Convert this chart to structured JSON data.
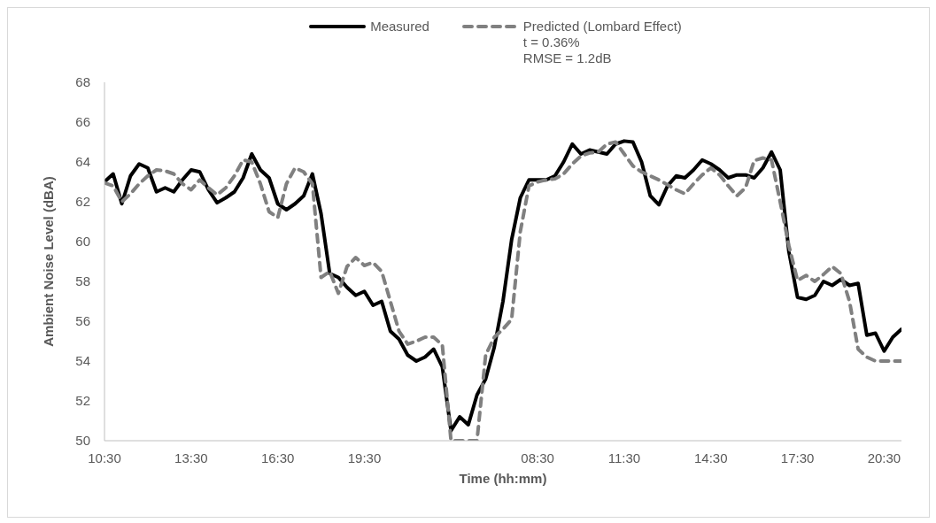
{
  "chart_data": {
    "type": "line",
    "xlabel": "Time (hh:mm)",
    "ylabel": "Ambient Noise Level (dBA)",
    "categories": [
      "10:30",
      null,
      null,
      null,
      null,
      null,
      null,
      null,
      null,
      null,
      "13:30",
      null,
      null,
      null,
      null,
      null,
      null,
      null,
      null,
      null,
      "16:30",
      null,
      null,
      null,
      null,
      null,
      null,
      null,
      null,
      null,
      "19:30",
      null,
      null,
      null,
      null,
      null,
      null,
      null,
      null,
      null,
      null,
      null,
      null,
      null,
      null,
      null,
      null,
      null,
      null,
      null,
      "08:30",
      null,
      null,
      null,
      null,
      null,
      null,
      null,
      null,
      null,
      "11:30",
      null,
      null,
      null,
      null,
      null,
      null,
      null,
      null,
      null,
      "14:30",
      null,
      null,
      null,
      null,
      null,
      null,
      null,
      null,
      null,
      "17:30",
      null,
      null,
      null,
      null,
      null,
      null,
      null,
      null,
      null,
      "20:30",
      null,
      null
    ],
    "series": [
      {
        "name": "Measured",
        "color": "#000000",
        "line_style": "solid",
        "values": [
          63.0,
          63.4,
          61.9,
          63.3,
          63.9,
          63.7,
          62.5,
          62.7,
          62.5,
          63.1,
          63.6,
          63.5,
          62.6,
          61.95,
          62.2,
          62.5,
          63.2,
          64.4,
          63.6,
          63.2,
          61.9,
          61.6,
          61.9,
          62.3,
          63.4,
          61.4,
          58.4,
          58.2,
          57.7,
          57.3,
          57.5,
          56.8,
          57.0,
          55.5,
          55.1,
          54.3,
          54.0,
          54.2,
          54.6,
          53.7,
          50.5,
          51.2,
          50.8,
          52.3,
          53.1,
          54.7,
          57.0,
          60.1,
          62.2,
          63.1,
          63.1,
          63.1,
          63.3,
          64.0,
          64.9,
          64.4,
          64.6,
          64.5,
          64.4,
          64.9,
          65.05,
          65.0,
          64.0,
          62.3,
          61.85,
          62.8,
          63.3,
          63.2,
          63.6,
          64.1,
          63.9,
          63.6,
          63.2,
          63.35,
          63.35,
          63.2,
          63.7,
          64.5,
          63.6,
          59.5,
          57.2,
          57.1,
          57.3,
          58.0,
          57.8,
          58.1,
          57.8,
          57.9,
          55.3,
          55.4,
          54.5,
          55.2,
          55.6
        ]
      },
      {
        "name": "Predicted (Lombard Effect)",
        "color": "#808080",
        "line_style": "dashed",
        "values": [
          62.95,
          62.8,
          62.0,
          62.4,
          62.9,
          63.3,
          63.6,
          63.55,
          63.4,
          62.9,
          62.6,
          63.1,
          62.7,
          62.35,
          62.7,
          63.3,
          64.1,
          64.0,
          62.9,
          61.5,
          61.2,
          62.9,
          63.7,
          63.5,
          62.9,
          58.2,
          58.5,
          57.4,
          58.75,
          59.2,
          58.8,
          58.95,
          58.5,
          57.0,
          55.5,
          54.85,
          55.0,
          55.2,
          55.2,
          54.8,
          50,
          50,
          50,
          50,
          54.3,
          55.2,
          55.6,
          56.1,
          60.5,
          62.8,
          63.0,
          63.1,
          63.15,
          63.4,
          63.9,
          64.3,
          64.45,
          64.5,
          64.9,
          65.0,
          64.4,
          63.8,
          63.5,
          63.3,
          63.1,
          62.85,
          62.6,
          62.4,
          62.9,
          63.35,
          63.7,
          63.35,
          62.8,
          62.3,
          62.7,
          64.07,
          64.2,
          64.1,
          62.0,
          59.8,
          58.05,
          58.3,
          58.0,
          58.35,
          58.75,
          58.4,
          57.0,
          54.6,
          54.2,
          54.0,
          54.0,
          54.0,
          54.0
        ]
      }
    ],
    "annotations": [
      "t = 0.36%",
      "RMSE = 1.2dB"
    ],
    "ylim": [
      50,
      68
    ],
    "yticks": [
      50,
      52,
      54,
      56,
      58,
      60,
      62,
      64,
      66,
      68
    ],
    "legend": "top",
    "marker": "none"
  }
}
